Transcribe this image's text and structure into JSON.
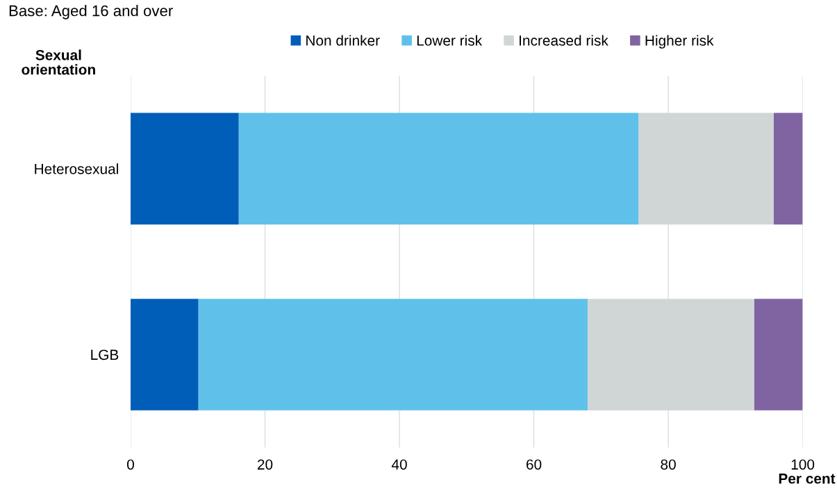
{
  "chart_data": {
    "type": "bar",
    "orientation": "horizontal",
    "stacked": true,
    "subtitle": "Base: Aged 16 and over",
    "ylabel": "Sexual\norientation",
    "xlabel": "Per cent",
    "categories": [
      "Heterosexual",
      "LGB"
    ],
    "series": [
      {
        "name": "Non drinker",
        "color": "#005eb8",
        "values": [
          16.1,
          10.1
        ]
      },
      {
        "name": "Lower risk",
        "color": "#5fc1ea",
        "values": [
          59.5,
          57.9
        ]
      },
      {
        "name": "Increased risk",
        "color": "#d0d6d6",
        "values": [
          20.1,
          24.8
        ]
      },
      {
        "name": "Higher risk",
        "color": "#8064a2",
        "values": [
          4.3,
          7.2
        ]
      }
    ],
    "xlim": [
      0,
      100
    ],
    "xticks": [
      0,
      20,
      40,
      60,
      80,
      100
    ],
    "grid": "x",
    "legend": "top"
  }
}
